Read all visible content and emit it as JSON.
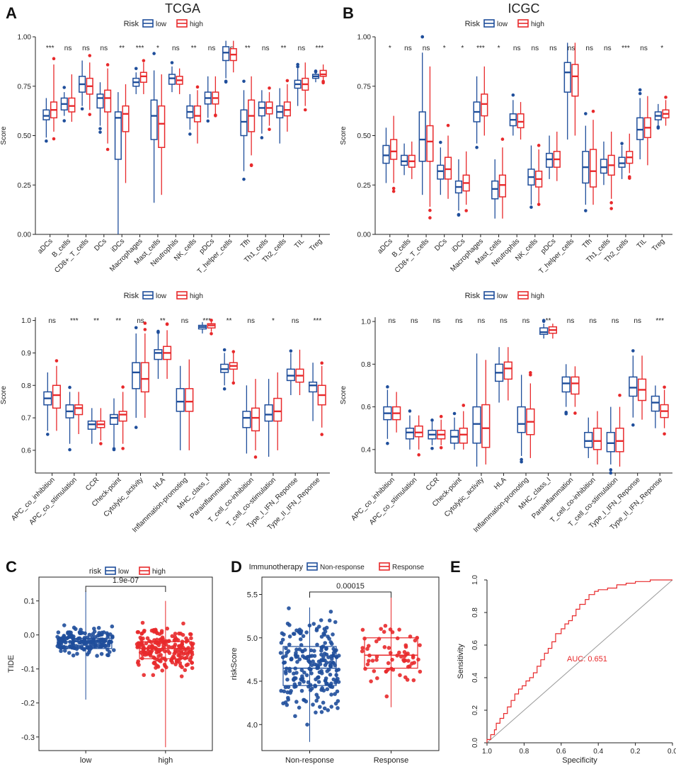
{
  "colors": {
    "low": "#1f4e9b",
    "high": "#e8292b",
    "nonresp": "#1f4e9b",
    "resp": "#e8292b",
    "axis": "#222222",
    "diag": "#9a9a9a",
    "roc": "#e8292b"
  },
  "chart_data": [
    {
      "id": "A",
      "panel_letter": "A",
      "type": "boxplot",
      "title": "TCGA",
      "legend": {
        "title": "Risk",
        "labels": [
          "low",
          "high"
        ]
      },
      "ylabel": "Score",
      "ylim": [
        0,
        1
      ],
      "yticks": [
        "0.00",
        "0.25",
        "0.50",
        "0.75",
        "1.00"
      ],
      "categories": [
        "aDCs",
        "B_cells",
        "CD8+_T_cells",
        "DCs",
        "iDCs",
        "Macrophages",
        "Mast_cells",
        "Neutrophils",
        "NK_cells",
        "pDCs",
        "T_helper_cells",
        "Tfh",
        "Th1_cells",
        "Th2_cells",
        "TIL",
        "Treg"
      ],
      "significance": [
        "***",
        "ns",
        "ns",
        "ns",
        "**",
        "***",
        "*",
        "ns",
        "**",
        "ns",
        "ns",
        "**",
        "ns",
        "**",
        "ns",
        "***"
      ],
      "low": [
        [
          0.49,
          0.58,
          0.6,
          0.63,
          0.69
        ],
        [
          0.6,
          0.63,
          0.66,
          0.69,
          0.72
        ],
        [
          0.65,
          0.72,
          0.76,
          0.8,
          0.88
        ],
        [
          0.55,
          0.64,
          0.69,
          0.71,
          0.77
        ],
        [
          0.0,
          0.38,
          0.59,
          0.62,
          0.72
        ],
        [
          0.71,
          0.75,
          0.77,
          0.79,
          0.82
        ],
        [
          0.16,
          0.48,
          0.6,
          0.68,
          0.83
        ],
        [
          0.72,
          0.76,
          0.79,
          0.81,
          0.85
        ],
        [
          0.53,
          0.59,
          0.62,
          0.65,
          0.71
        ],
        [
          0.59,
          0.66,
          0.69,
          0.72,
          0.8
        ],
        [
          0.79,
          0.88,
          0.92,
          0.95,
          0.98
        ],
        [
          0.32,
          0.5,
          0.57,
          0.63,
          0.73
        ],
        [
          0.51,
          0.6,
          0.64,
          0.67,
          0.73
        ],
        [
          0.46,
          0.59,
          0.62,
          0.65,
          0.74
        ],
        [
          0.65,
          0.74,
          0.76,
          0.78,
          0.84
        ],
        [
          0.77,
          0.79,
          0.8,
          0.81,
          0.82
        ]
      ],
      "high": [
        [
          0.52,
          0.59,
          0.63,
          0.67,
          0.86
        ],
        [
          0.57,
          0.62,
          0.65,
          0.69,
          0.81
        ],
        [
          0.63,
          0.71,
          0.75,
          0.79,
          0.87
        ],
        [
          0.46,
          0.62,
          0.69,
          0.73,
          0.84
        ],
        [
          0.26,
          0.52,
          0.61,
          0.65,
          0.76
        ],
        [
          0.71,
          0.77,
          0.8,
          0.82,
          0.87
        ],
        [
          0.2,
          0.44,
          0.56,
          0.65,
          0.81
        ],
        [
          0.71,
          0.76,
          0.78,
          0.8,
          0.84
        ],
        [
          0.46,
          0.57,
          0.6,
          0.65,
          0.73
        ],
        [
          0.61,
          0.66,
          0.69,
          0.72,
          0.8
        ],
        [
          0.82,
          0.88,
          0.91,
          0.94,
          0.98
        ],
        [
          0.4,
          0.52,
          0.6,
          0.68,
          0.8
        ],
        [
          0.55,
          0.61,
          0.64,
          0.67,
          0.72
        ],
        [
          0.52,
          0.6,
          0.63,
          0.67,
          0.76
        ],
        [
          0.65,
          0.73,
          0.76,
          0.79,
          0.87
        ],
        [
          0.78,
          0.8,
          0.81,
          0.83,
          0.86
        ]
      ]
    },
    {
      "id": "B",
      "panel_letter": "B",
      "type": "boxplot",
      "title": "ICGC",
      "legend": {
        "title": "Risk",
        "labels": [
          "low",
          "high"
        ]
      },
      "ylabel": "Score",
      "ylim": [
        0,
        1
      ],
      "yticks": [
        "0.00",
        "0.25",
        "0.50",
        "0.75",
        "1.00"
      ],
      "categories": [
        "aDCs",
        "B_cells",
        "CD8+_T_cells",
        "DCs",
        "iDCs",
        "Macrophages",
        "Mast_cells",
        "Neutrophils",
        "NK_cells",
        "pDCs",
        "T_helper_cells",
        "Tfh",
        "Th1_cells",
        "Th2_cells",
        "TIL",
        "Treg"
      ],
      "significance": [
        "*",
        "ns",
        "ns",
        "*",
        "*",
        "***",
        "*",
        "ns",
        "ns",
        "ns",
        "ns",
        "ns",
        "ns",
        "***",
        "ns",
        "*"
      ],
      "low": [
        [
          0.26,
          0.36,
          0.4,
          0.45,
          0.54
        ],
        [
          0.3,
          0.35,
          0.37,
          0.4,
          0.46
        ],
        [
          0.2,
          0.37,
          0.48,
          0.62,
          0.92
        ],
        [
          0.2,
          0.28,
          0.32,
          0.35,
          0.44
        ],
        [
          0.12,
          0.21,
          0.24,
          0.27,
          0.38
        ],
        [
          0.46,
          0.57,
          0.62,
          0.67,
          0.8
        ],
        [
          0.08,
          0.18,
          0.23,
          0.27,
          0.38
        ],
        [
          0.5,
          0.55,
          0.58,
          0.61,
          0.68
        ],
        [
          0.15,
          0.25,
          0.29,
          0.33,
          0.45
        ],
        [
          0.28,
          0.34,
          0.38,
          0.41,
          0.5
        ],
        [
          0.48,
          0.72,
          0.82,
          0.87,
          0.97
        ],
        [
          0.15,
          0.26,
          0.34,
          0.42,
          0.55
        ],
        [
          0.25,
          0.31,
          0.34,
          0.38,
          0.47
        ],
        [
          0.28,
          0.34,
          0.36,
          0.39,
          0.45
        ],
        [
          0.38,
          0.48,
          0.53,
          0.59,
          0.69
        ],
        [
          0.55,
          0.58,
          0.6,
          0.62,
          0.66
        ]
      ],
      "high": [
        [
          0.26,
          0.38,
          0.42,
          0.48,
          0.6
        ],
        [
          0.28,
          0.34,
          0.37,
          0.4,
          0.47
        ],
        [
          0.14,
          0.37,
          0.47,
          0.55,
          0.85
        ],
        [
          0.18,
          0.28,
          0.33,
          0.39,
          0.5
        ],
        [
          0.15,
          0.22,
          0.26,
          0.3,
          0.42
        ],
        [
          0.5,
          0.6,
          0.66,
          0.71,
          0.85
        ],
        [
          0.08,
          0.19,
          0.25,
          0.3,
          0.44
        ],
        [
          0.48,
          0.54,
          0.57,
          0.61,
          0.67
        ],
        [
          0.16,
          0.24,
          0.28,
          0.32,
          0.43
        ],
        [
          0.27,
          0.34,
          0.38,
          0.42,
          0.52
        ],
        [
          0.5,
          0.7,
          0.8,
          0.86,
          0.97
        ],
        [
          0.15,
          0.24,
          0.32,
          0.43,
          0.58
        ],
        [
          0.18,
          0.3,
          0.35,
          0.4,
          0.52
        ],
        [
          0.31,
          0.36,
          0.39,
          0.42,
          0.51
        ],
        [
          0.35,
          0.49,
          0.54,
          0.59,
          0.7
        ],
        [
          0.55,
          0.59,
          0.61,
          0.63,
          0.68
        ]
      ]
    },
    {
      "id": "A2",
      "panel_letter": "",
      "type": "boxplot",
      "title": "",
      "legend": {
        "title": "Risk",
        "labels": [
          "low",
          "high"
        ]
      },
      "ylabel": "Score",
      "ylim": [
        0.53,
        1.01
      ],
      "yticks": [
        "0.6",
        "0.7",
        "0.8",
        "0.9",
        "1.0"
      ],
      "categories": [
        "APC_co_inhibition",
        "APC_co_stimulation",
        "CCR",
        "Check-point",
        "Cytolytic_activity",
        "HLA",
        "Inflammation-promoting",
        "MHC_class_I",
        "Parainflammation",
        "T_cell_co-inhibition",
        "T_cell_co-stimulation",
        "Type_I_IFN_Reponse",
        "Type_II_IFN_Reponse"
      ],
      "significance": [
        "ns",
        "***",
        "**",
        "**",
        "ns",
        "**",
        "ns",
        "***",
        "**",
        "ns",
        "*",
        "ns",
        "***"
      ],
      "low": [
        [
          0.66,
          0.74,
          0.76,
          0.78,
          0.84
        ],
        [
          0.62,
          0.7,
          0.72,
          0.74,
          0.78
        ],
        [
          0.62,
          0.665,
          0.68,
          0.69,
          0.73
        ],
        [
          0.61,
          0.68,
          0.7,
          0.71,
          0.76
        ],
        [
          0.7,
          0.79,
          0.84,
          0.87,
          0.96
        ],
        [
          0.82,
          0.88,
          0.9,
          0.91,
          0.96
        ],
        [
          0.6,
          0.72,
          0.75,
          0.79,
          0.86
        ],
        [
          0.96,
          0.974,
          0.98,
          0.985,
          0.995
        ],
        [
          0.8,
          0.84,
          0.85,
          0.865,
          0.9
        ],
        [
          0.59,
          0.67,
          0.7,
          0.72,
          0.8
        ],
        [
          0.58,
          0.69,
          0.71,
          0.74,
          0.82
        ],
        [
          0.77,
          0.815,
          0.83,
          0.85,
          0.9
        ],
        [
          0.69,
          0.78,
          0.8,
          0.81,
          0.87
        ]
      ],
      "high": [
        [
          0.66,
          0.73,
          0.77,
          0.8,
          0.86
        ],
        [
          0.65,
          0.71,
          0.73,
          0.74,
          0.78
        ],
        [
          0.63,
          0.67,
          0.68,
          0.69,
          0.73
        ],
        [
          0.62,
          0.69,
          0.71,
          0.72,
          0.78
        ],
        [
          0.7,
          0.78,
          0.82,
          0.87,
          0.96
        ],
        [
          0.82,
          0.88,
          0.9,
          0.92,
          0.97
        ],
        [
          0.6,
          0.72,
          0.75,
          0.79,
          0.88
        ],
        [
          0.965,
          0.977,
          0.985,
          0.99,
          0.998
        ],
        [
          0.81,
          0.85,
          0.86,
          0.87,
          0.9
        ],
        [
          0.6,
          0.66,
          0.7,
          0.73,
          0.82
        ],
        [
          0.6,
          0.69,
          0.72,
          0.76,
          0.84
        ],
        [
          0.77,
          0.81,
          0.83,
          0.85,
          0.91
        ],
        [
          0.67,
          0.74,
          0.77,
          0.8,
          0.86
        ]
      ]
    },
    {
      "id": "B2",
      "panel_letter": "",
      "type": "boxplot",
      "title": "",
      "legend": {
        "title": "Risk",
        "labels": [
          "low",
          "high"
        ]
      },
      "ylabel": "Score",
      "ylim": [
        0.29,
        1.02
      ],
      "yticks": [
        "0.4",
        "0.6",
        "0.8",
        "1.0"
      ],
      "categories": [
        "APC_co_inhibition",
        "APC_co_stimulation",
        "CCR",
        "Check-point",
        "Cytolytic_activity",
        "HLA",
        "Inflammation-promoting",
        "MHC_class_I",
        "Parainflammation",
        "T_cell_co-inhibition",
        "T_cell_co-stimulation",
        "Type_I_IFN_Reponse",
        "Type_II_IFN_Reponse"
      ],
      "significance": [
        "ns",
        "ns",
        "ns",
        "ns",
        "ns",
        "ns",
        "ns",
        "**",
        "ns",
        "ns",
        "ns",
        "ns",
        "***"
      ],
      "low": [
        [
          0.45,
          0.54,
          0.57,
          0.6,
          0.68
        ],
        [
          0.4,
          0.45,
          0.48,
          0.5,
          0.56
        ],
        [
          0.42,
          0.45,
          0.47,
          0.49,
          0.53
        ],
        [
          0.4,
          0.43,
          0.46,
          0.49,
          0.55
        ],
        [
          0.32,
          0.43,
          0.52,
          0.6,
          0.85
        ],
        [
          0.62,
          0.72,
          0.76,
          0.8,
          0.88
        ],
        [
          0.37,
          0.48,
          0.52,
          0.6,
          0.75
        ],
        [
          0.92,
          0.94,
          0.95,
          0.97,
          0.99
        ],
        [
          0.6,
          0.67,
          0.71,
          0.74,
          0.8
        ],
        [
          0.36,
          0.41,
          0.44,
          0.48,
          0.55
        ],
        [
          0.33,
          0.39,
          0.43,
          0.48,
          0.6
        ],
        [
          0.55,
          0.65,
          0.69,
          0.74,
          0.84
        ],
        [
          0.5,
          0.58,
          0.62,
          0.65,
          0.7
        ]
      ],
      "high": [
        [
          0.48,
          0.54,
          0.57,
          0.6,
          0.67
        ],
        [
          0.4,
          0.46,
          0.48,
          0.51,
          0.56
        ],
        [
          0.42,
          0.45,
          0.47,
          0.49,
          0.54
        ],
        [
          0.4,
          0.43,
          0.47,
          0.5,
          0.58
        ],
        [
          0.33,
          0.41,
          0.5,
          0.61,
          0.82
        ],
        [
          0.63,
          0.73,
          0.78,
          0.81,
          0.88
        ],
        [
          0.36,
          0.47,
          0.53,
          0.59,
          0.71
        ],
        [
          0.92,
          0.945,
          0.96,
          0.975,
          0.99
        ],
        [
          0.6,
          0.66,
          0.71,
          0.74,
          0.79
        ],
        [
          0.33,
          0.4,
          0.44,
          0.5,
          0.58
        ],
        [
          0.32,
          0.39,
          0.44,
          0.5,
          0.6
        ],
        [
          0.54,
          0.63,
          0.68,
          0.73,
          0.84
        ],
        [
          0.5,
          0.55,
          0.58,
          0.61,
          0.68
        ]
      ]
    },
    {
      "id": "C",
      "panel_letter": "C",
      "type": "boxplot-jitter",
      "title": "",
      "legend": {
        "title": "risk",
        "labels": [
          "low",
          "high"
        ]
      },
      "xlabel": "",
      "ylabel": "TIDE",
      "ylim": [
        -0.34,
        0.17
      ],
      "yticks": [
        "0.1",
        "0.0",
        "-0.1",
        "-0.2",
        "-0.3"
      ],
      "categories": [
        "low",
        "high"
      ],
      "pvalue": "1.9e-07",
      "boxes": [
        [
          -0.19,
          -0.04,
          -0.02,
          -0.01,
          0.13
        ],
        [
          -0.33,
          -0.07,
          -0.04,
          -0.02,
          0.1
        ]
      ]
    },
    {
      "id": "D",
      "panel_letter": "D",
      "type": "boxplot-jitter",
      "title": "",
      "legend": {
        "title": "Immunotherapy",
        "labels": [
          "Non-response",
          "Response"
        ]
      },
      "xlabel": "",
      "ylabel": "riskScore",
      "ylim": [
        3.7,
        5.7
      ],
      "yticks": [
        "4.0",
        "4.5",
        "5.0",
        "5.5"
      ],
      "categories": [
        "Non-response",
        "Response"
      ],
      "pvalue": "0.00015",
      "boxes": [
        [
          3.8,
          4.45,
          4.65,
          4.9,
          5.35
        ],
        [
          4.2,
          4.65,
          4.8,
          5.0,
          5.5
        ]
      ]
    },
    {
      "id": "E",
      "panel_letter": "E",
      "type": "line",
      "title": "",
      "xlabel": "Specificity",
      "ylabel": "Sensitivity",
      "xlim": [
        1.0,
        0.0
      ],
      "ylim": [
        0.0,
        1.0
      ],
      "xticks": [
        "1.0",
        "0.8",
        "0.6",
        "0.4",
        "0.2",
        "0.0"
      ],
      "yticks": [
        "0.0",
        "0.2",
        "0.4",
        "0.6",
        "0.8",
        "1.0"
      ],
      "auc_label": "AUC: 0.651",
      "roc": [
        [
          1.0,
          0.0
        ],
        [
          0.98,
          0.02
        ],
        [
          0.96,
          0.05
        ],
        [
          0.95,
          0.08
        ],
        [
          0.93,
          0.12
        ],
        [
          0.91,
          0.15
        ],
        [
          0.89,
          0.18
        ],
        [
          0.87,
          0.22
        ],
        [
          0.85,
          0.26
        ],
        [
          0.83,
          0.3
        ],
        [
          0.81,
          0.33
        ],
        [
          0.79,
          0.35
        ],
        [
          0.77,
          0.38
        ],
        [
          0.75,
          0.4
        ],
        [
          0.73,
          0.43
        ],
        [
          0.71,
          0.47
        ],
        [
          0.69,
          0.51
        ],
        [
          0.67,
          0.55
        ],
        [
          0.65,
          0.58
        ],
        [
          0.63,
          0.62
        ],
        [
          0.6,
          0.67
        ],
        [
          0.58,
          0.7
        ],
        [
          0.56,
          0.73
        ],
        [
          0.54,
          0.75
        ],
        [
          0.52,
          0.78
        ],
        [
          0.5,
          0.82
        ],
        [
          0.47,
          0.85
        ],
        [
          0.45,
          0.88
        ],
        [
          0.42,
          0.91
        ],
        [
          0.4,
          0.93
        ],
        [
          0.35,
          0.94
        ],
        [
          0.3,
          0.95
        ],
        [
          0.25,
          0.97
        ],
        [
          0.2,
          0.98
        ],
        [
          0.12,
          0.99
        ],
        [
          0.05,
          1.0
        ],
        [
          0.0,
          1.0
        ]
      ]
    }
  ]
}
